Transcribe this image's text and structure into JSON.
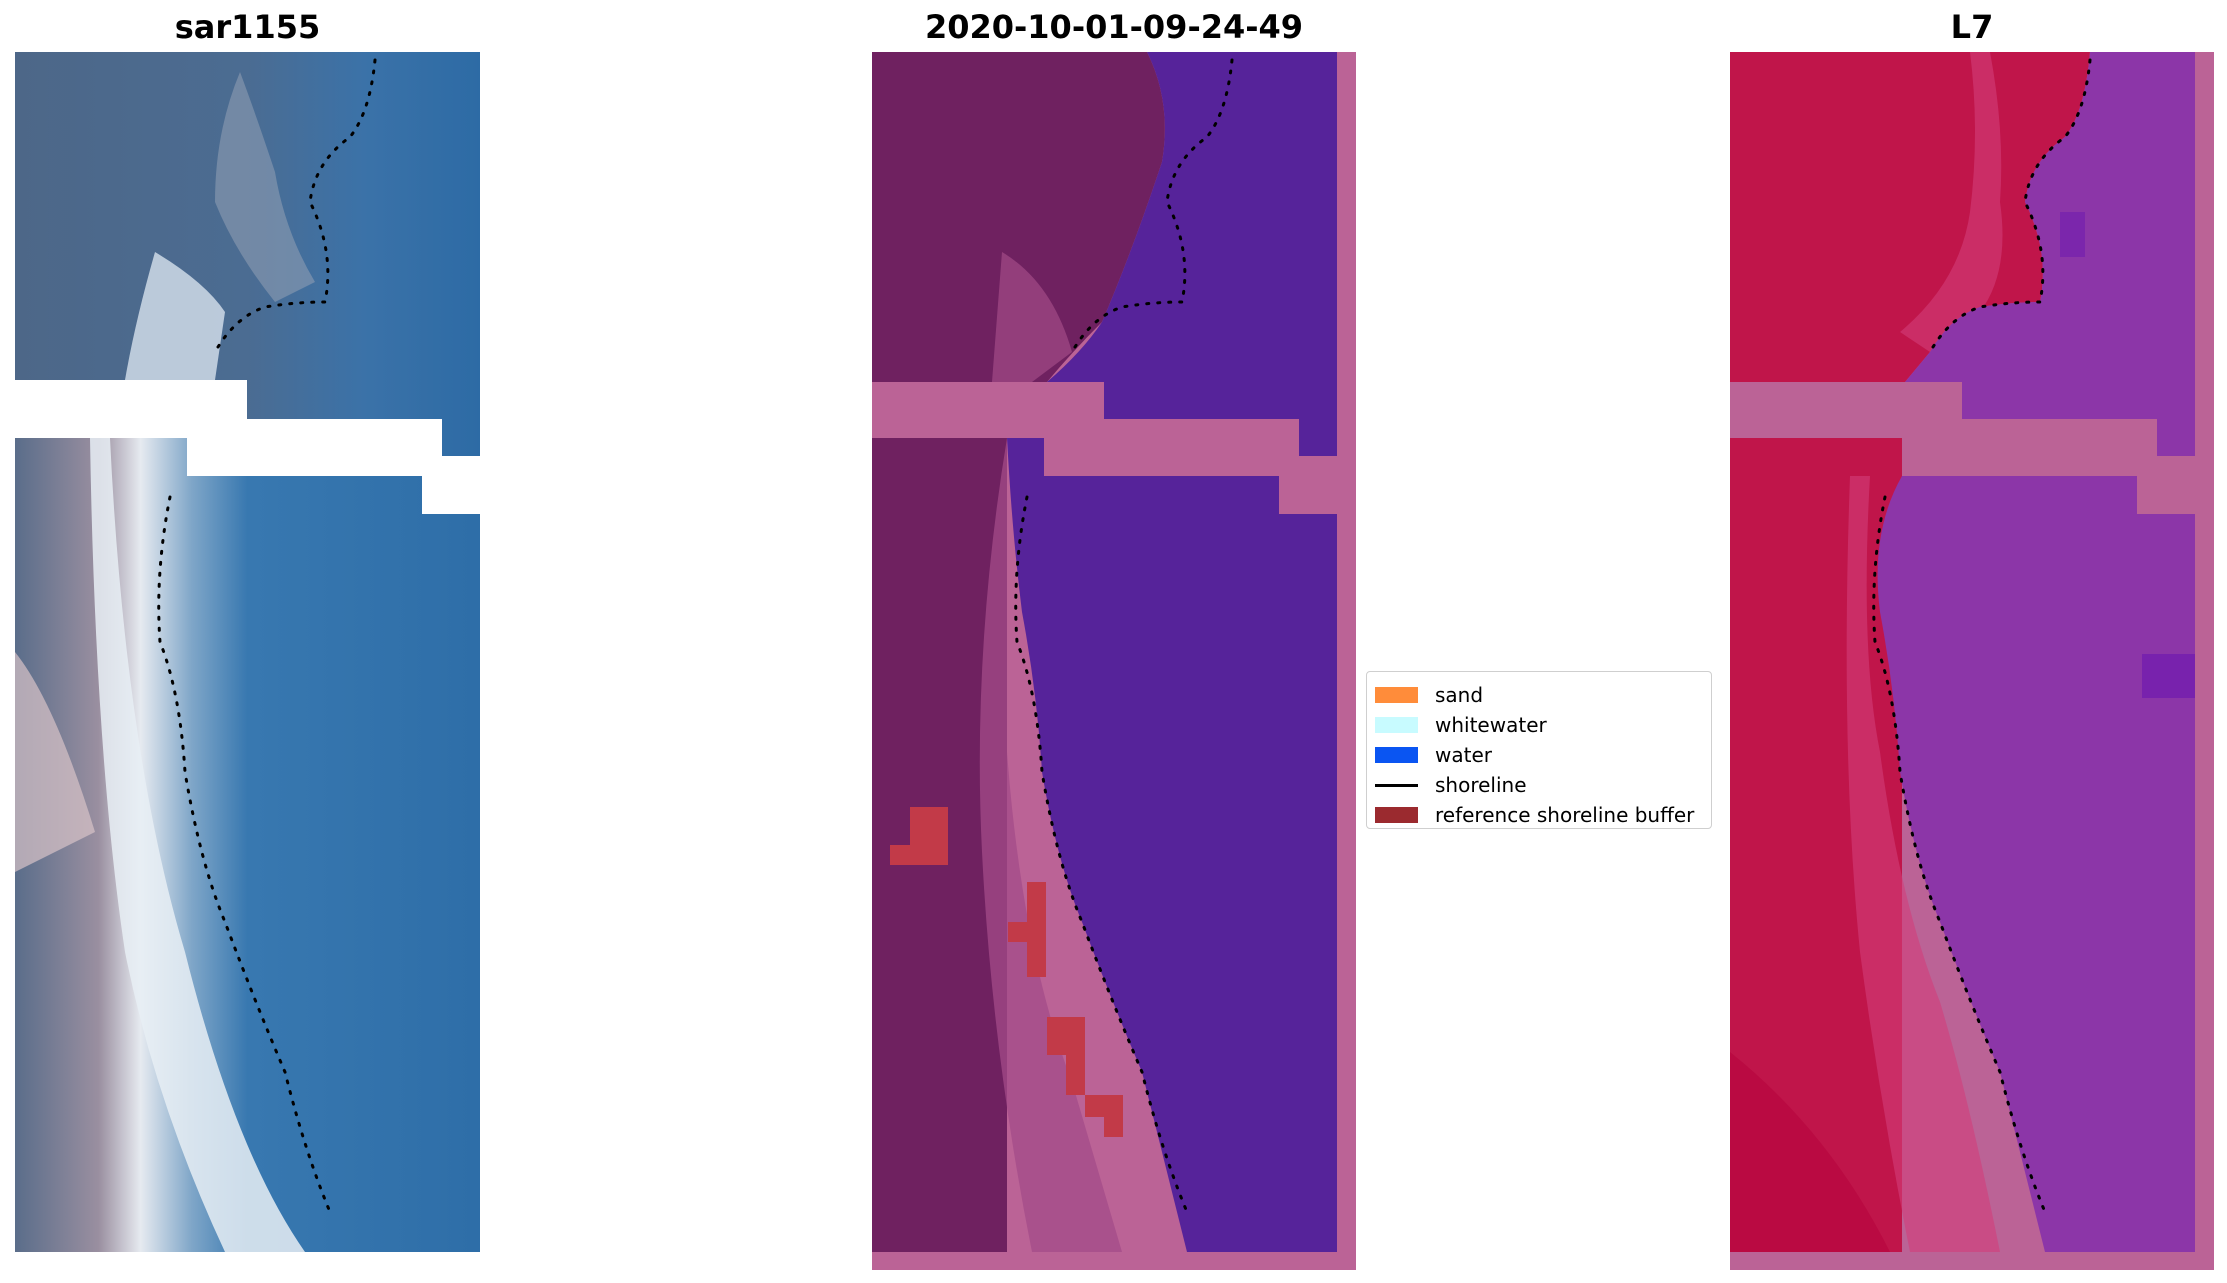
{
  "panels": {
    "rgb": {
      "title": "sar1155"
    },
    "classified": {
      "title": "2020-10-01-09-24-49"
    },
    "index": {
      "title": "L7"
    }
  },
  "legend": {
    "items": [
      {
        "label": "sand",
        "color": "#ff8c3a",
        "kind": "patch"
      },
      {
        "label": "whitewater",
        "color": "#c8fbff",
        "kind": "patch"
      },
      {
        "label": "water",
        "color": "#0a55f2",
        "kind": "patch"
      },
      {
        "label": "shoreline",
        "color": "#000000",
        "kind": "line"
      },
      {
        "label": "reference shoreline buffer",
        "color": "#9b2a2f",
        "kind": "patch"
      }
    ]
  },
  "colors": {
    "rgb_water": "#2f6ea8",
    "rgb_land": "#4f6a8c",
    "rgb_surf": "#e8ecf2",
    "classified_land": "#6f2160",
    "classified_water": "#56239a",
    "classified_nodata": "#bb6396",
    "classified_buffer": "#c23a48",
    "index_land": "#c0154a",
    "index_water": "#8c36a8",
    "index_nodata": "#bb6396",
    "shoreline_dots": "#000000"
  }
}
